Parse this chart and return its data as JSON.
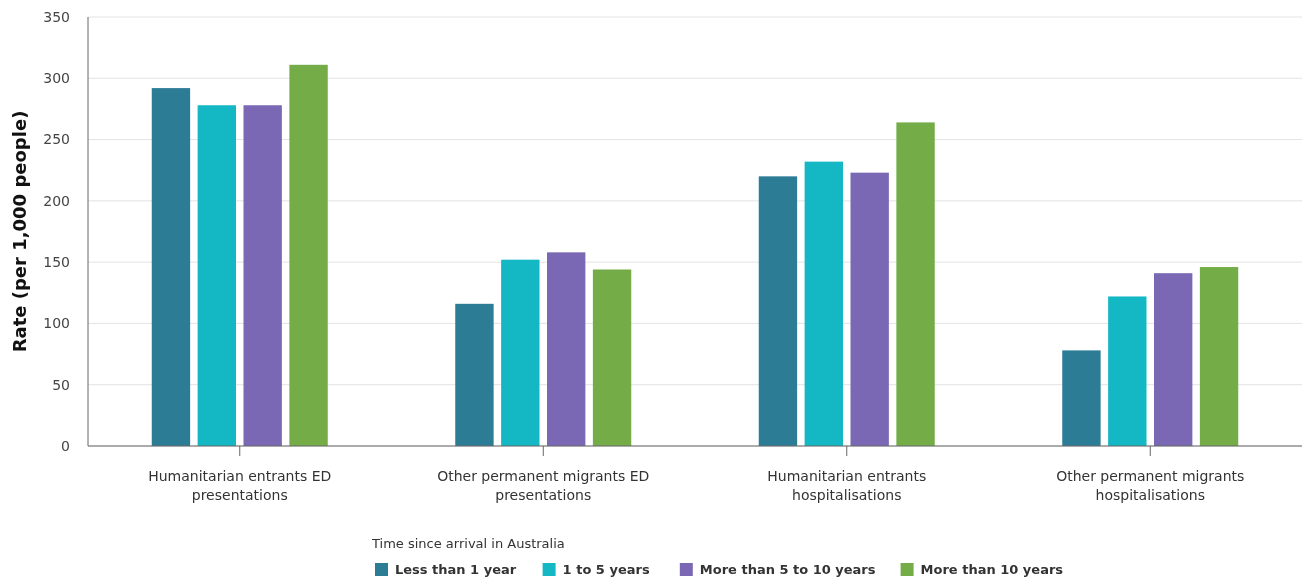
{
  "chart_data": {
    "type": "bar",
    "ylabel": "Rate (per 1,000 people)",
    "legend_title": "Time since arrival in Australia",
    "categories": [
      "Humanitarian entrants ED presentations",
      "Other permanent migrants ED presentations",
      "Humanitarian entrants hospitalisations",
      "Other permanent migrants hospitalisations"
    ],
    "series": [
      {
        "name": "Less than 1 year",
        "color": "#2c7c96",
        "values": [
          292,
          116,
          220,
          78
        ]
      },
      {
        "name": "1 to 5 years",
        "color": "#13b8c4",
        "values": [
          278,
          152,
          232,
          122
        ]
      },
      {
        "name": "More than 5 to 10 years",
        "color": "#7b68b4",
        "values": [
          278,
          158,
          223,
          141
        ]
      },
      {
        "name": "More than 10 years",
        "color": "#74ac48",
        "values": [
          311,
          144,
          264,
          146
        ]
      }
    ],
    "ylim": [
      0,
      350
    ],
    "yticks": [
      0,
      50,
      100,
      150,
      200,
      250,
      300,
      350
    ],
    "grid": "y",
    "legend": "bottom"
  }
}
